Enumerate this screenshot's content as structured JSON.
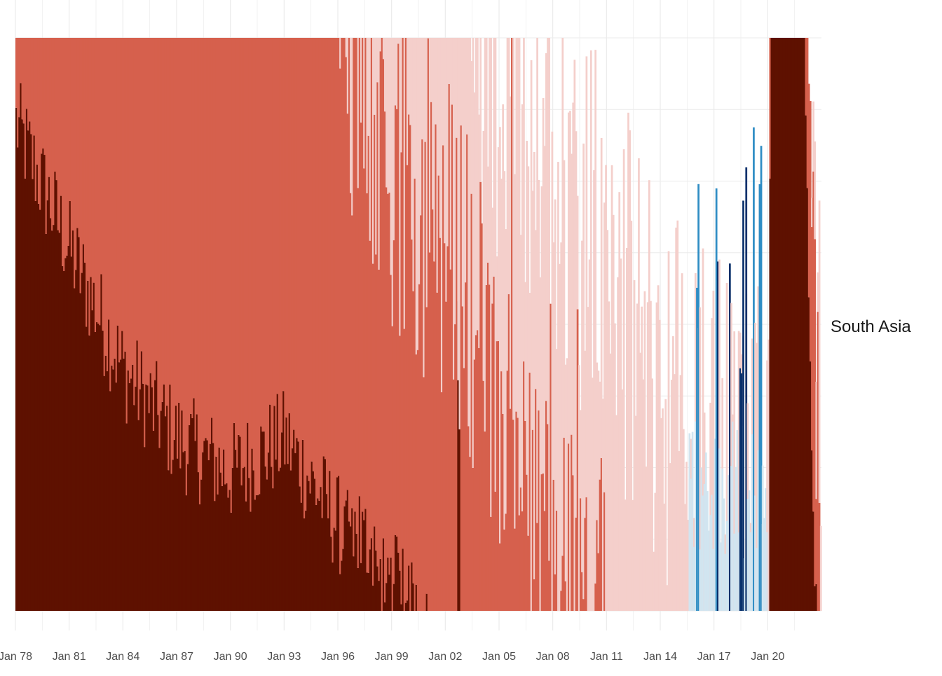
{
  "chart_data": {
    "type": "area",
    "facet_label": "South Asia",
    "x_ticks": [
      "Jan 78",
      "Jan 81",
      "Jan 84",
      "Jan 87",
      "Jan 90",
      "Jan 93",
      "Jan 96",
      "Jan 99",
      "Jan 02",
      "Jan 05",
      "Jan 08",
      "Jan 11",
      "Jan 14",
      "Jan 17",
      "Jan 20"
    ],
    "x_range": [
      "1978-01",
      "2022-12"
    ],
    "y_range": [
      0,
      1
    ],
    "y_tick_labels_shown": false,
    "grid": true,
    "legend": "none",
    "colors": {
      "dark_red": "#5e1100",
      "red": "#d6604d",
      "light_red": "#f4cfcb",
      "white": "#ffffff",
      "light_blue": "#d1e5f0",
      "blue": "#2f8dc4",
      "dark_blue": "#08306b"
    },
    "approx_level_profile": {
      "description_keys": [
        "year",
        "dark_red_share",
        "red_share",
        "light_red_share"
      ],
      "points": [
        [
          1978.0,
          0.85,
          1.0,
          1.0
        ],
        [
          1981.0,
          0.63,
          1.0,
          1.0
        ],
        [
          1984.0,
          0.42,
          1.0,
          1.0
        ],
        [
          1987.0,
          0.3,
          1.0,
          1.0
        ],
        [
          1990.0,
          0.24,
          1.0,
          1.0
        ],
        [
          1993.0,
          0.3,
          1.0,
          1.0
        ],
        [
          1996.0,
          0.15,
          1.0,
          1.0
        ],
        [
          1997.5,
          0.12,
          0.95,
          1.0
        ],
        [
          1999.0,
          0.05,
          0.7,
          1.0
        ],
        [
          2001.0,
          0.0,
          0.7,
          1.0
        ],
        [
          2003.0,
          0.0,
          0.6,
          1.0
        ],
        [
          2005.0,
          0.0,
          0.3,
          0.95
        ],
        [
          2008.0,
          0.0,
          0.05,
          0.8
        ],
        [
          2011.0,
          0.0,
          0.0,
          0.6
        ],
        [
          2014.0,
          0.0,
          0.0,
          0.4
        ],
        [
          2017.0,
          0.0,
          0.0,
          0.3
        ],
        [
          2020.0,
          0.0,
          0.0,
          0.2
        ],
        [
          2020.1,
          1.0,
          1.0,
          1.0
        ],
        [
          2022.0,
          1.0,
          1.0,
          1.0
        ],
        [
          2022.5,
          0.1,
          0.6,
          0.7
        ],
        [
          2022.9,
          0.0,
          0.0,
          0.45
        ]
      ]
    }
  }
}
